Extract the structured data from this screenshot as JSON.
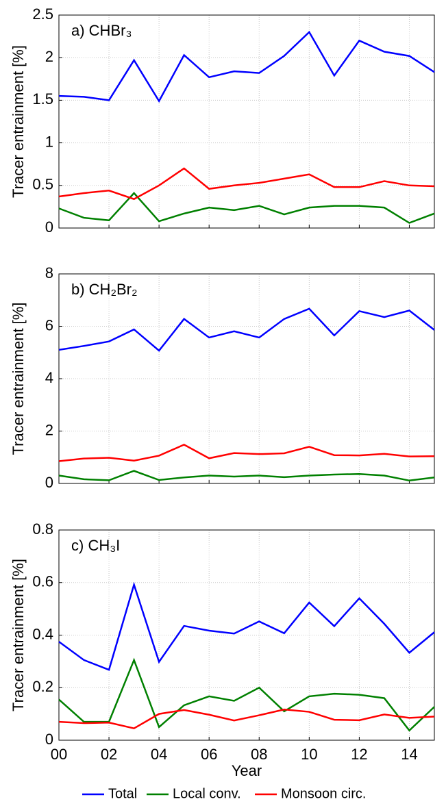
{
  "chart_data": [
    {
      "type": "line",
      "title": "a) CHBr₃",
      "ylabel": "Tracer entrainment [%]",
      "x": [
        0,
        1,
        2,
        3,
        4,
        5,
        6,
        7,
        8,
        9,
        10,
        11,
        12,
        13,
        14,
        15
      ],
      "xlim": [
        0,
        15
      ],
      "ylim": [
        0,
        2.5
      ],
      "yticks": [
        0,
        0.5,
        1,
        1.5,
        2,
        2.5
      ],
      "grid": true,
      "series": [
        {
          "name": "Total",
          "color": "#0000ff",
          "values": [
            1.55,
            1.54,
            1.5,
            1.97,
            1.49,
            2.03,
            1.77,
            1.84,
            1.82,
            2.02,
            2.3,
            1.79,
            2.2,
            2.07,
            2.02,
            1.83
          ]
        },
        {
          "name": "Local conv.",
          "color": "#008000",
          "values": [
            0.23,
            0.12,
            0.09,
            0.41,
            0.08,
            0.17,
            0.24,
            0.21,
            0.26,
            0.16,
            0.24,
            0.26,
            0.26,
            0.24,
            0.06,
            0.17
          ]
        },
        {
          "name": "Monsoon circ.",
          "color": "#ff0000",
          "values": [
            0.37,
            0.41,
            0.44,
            0.34,
            0.5,
            0.7,
            0.46,
            0.5,
            0.53,
            0.58,
            0.63,
            0.48,
            0.48,
            0.55,
            0.5,
            0.49
          ]
        }
      ]
    },
    {
      "type": "line",
      "title": "b) CH₂Br₂",
      "ylabel": "Tracer entrainment [%]",
      "x": [
        0,
        1,
        2,
        3,
        4,
        5,
        6,
        7,
        8,
        9,
        10,
        11,
        12,
        13,
        14,
        15
      ],
      "xlim": [
        0,
        15
      ],
      "ylim": [
        0,
        8
      ],
      "yticks": [
        0,
        2,
        4,
        6,
        8
      ],
      "grid": true,
      "series": [
        {
          "name": "Total",
          "color": "#0000ff",
          "values": [
            5.1,
            5.25,
            5.42,
            5.88,
            5.07,
            6.28,
            5.57,
            5.81,
            5.57,
            6.28,
            6.67,
            5.65,
            6.58,
            6.35,
            6.6,
            5.86
          ]
        },
        {
          "name": "Local conv.",
          "color": "#008000",
          "values": [
            0.3,
            0.16,
            0.12,
            0.48,
            0.13,
            0.23,
            0.3,
            0.26,
            0.3,
            0.24,
            0.3,
            0.34,
            0.36,
            0.3,
            0.11,
            0.23
          ]
        },
        {
          "name": "Monsoon circ.",
          "color": "#ff0000",
          "values": [
            0.85,
            0.95,
            0.98,
            0.87,
            1.06,
            1.48,
            0.96,
            1.16,
            1.12,
            1.15,
            1.4,
            1.08,
            1.07,
            1.13,
            1.03,
            1.04
          ]
        }
      ]
    },
    {
      "type": "line",
      "title": "c) CH₃I",
      "ylabel": "Tracer entrainment [%]",
      "xlabel": "Year",
      "x": [
        0,
        1,
        2,
        3,
        4,
        5,
        6,
        7,
        8,
        9,
        10,
        11,
        12,
        13,
        14,
        15
      ],
      "xlim": [
        0,
        15
      ],
      "xticks": [
        {
          "value": 0,
          "label": "00"
        },
        {
          "value": 2,
          "label": "02"
        },
        {
          "value": 4,
          "label": "04"
        },
        {
          "value": 6,
          "label": "06"
        },
        {
          "value": 8,
          "label": "08"
        },
        10,
        12,
        14
      ],
      "ylim": [
        0,
        0.8
      ],
      "yticks": [
        0,
        0.2,
        0.4,
        0.6,
        0.8
      ],
      "grid": true,
      "series": [
        {
          "name": "Total",
          "color": "#0000ff",
          "values": [
            0.375,
            0.305,
            0.268,
            0.592,
            0.298,
            0.435,
            0.417,
            0.406,
            0.452,
            0.407,
            0.524,
            0.434,
            0.54,
            0.443,
            0.333,
            0.411
          ]
        },
        {
          "name": "Local conv.",
          "color": "#008000",
          "values": [
            0.155,
            0.07,
            0.07,
            0.305,
            0.05,
            0.133,
            0.167,
            0.15,
            0.2,
            0.11,
            0.167,
            0.177,
            0.173,
            0.16,
            0.037,
            0.127
          ]
        },
        {
          "name": "Monsoon circ.",
          "color": "#ff0000",
          "values": [
            0.07,
            0.065,
            0.067,
            0.045,
            0.1,
            0.115,
            0.097,
            0.075,
            0.095,
            0.117,
            0.108,
            0.078,
            0.076,
            0.098,
            0.085,
            0.09
          ]
        }
      ]
    }
  ]
}
